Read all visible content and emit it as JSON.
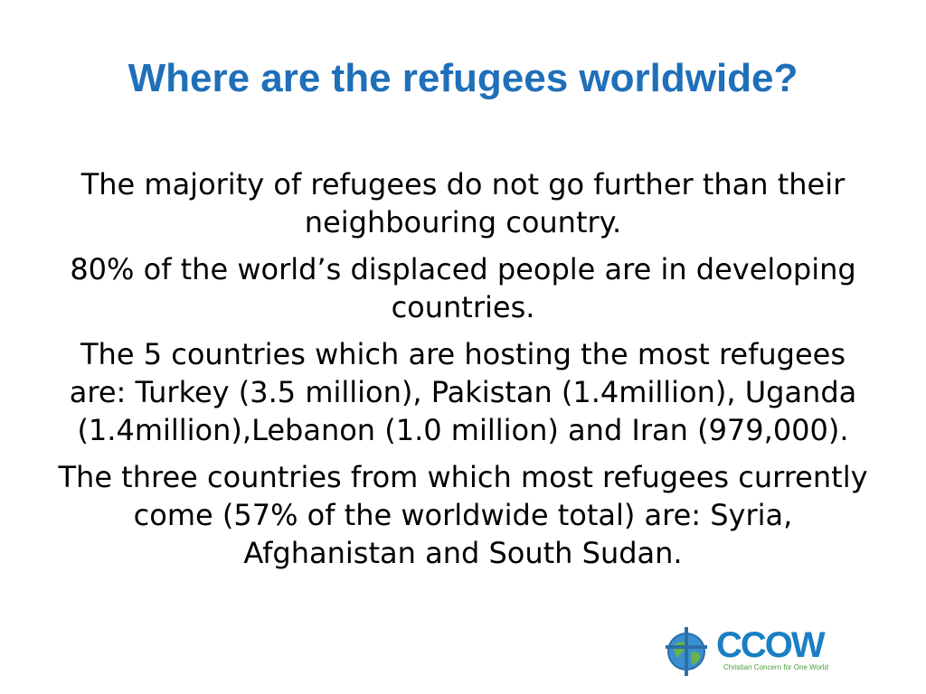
{
  "slide": {
    "title": "Where are the refugees worldwide?",
    "paragraphs": [
      "The majority of refugees do not go further than their neighbouring country.",
      "80% of the world’s displaced people are in developing countries.",
      "The 5 countries which are hosting the most refugees are: Turkey (3.5 million), Pakistan (1.4million), Uganda (1.4million),Lebanon (1.0 million) and Iran (979,000).",
      "The three countries from which most refugees currently come (57% of the worldwide total) are: Syria, Afghanistan and South Sudan."
    ]
  },
  "logo": {
    "name": "CCOW",
    "tagline": "Christian Concern for One World",
    "icon": "globe-cross-icon"
  },
  "colors": {
    "title": "#1f6fb9",
    "body_text": "#000000",
    "logo_blue": "#1a7fc4",
    "logo_green": "#4a9a3a"
  }
}
